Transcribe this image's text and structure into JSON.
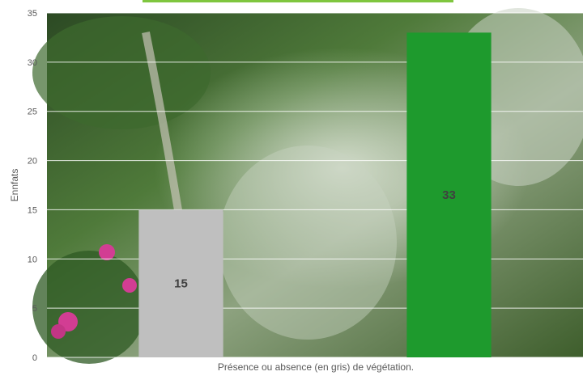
{
  "chart_data": {
    "type": "bar",
    "title": "",
    "xlabel": "Présence ou absence (en gris) de végétation.",
    "ylabel": "Ennfats",
    "ylim": [
      0,
      35
    ],
    "yticks": [
      0,
      5,
      10,
      15,
      20,
      25,
      30,
      35
    ],
    "categories": [
      "",
      ""
    ],
    "values": [
      15,
      33
    ],
    "data_labels": [
      "15",
      "33"
    ],
    "grid": true,
    "legend": "none",
    "colors": {
      "bars": [
        "#bfbfbf",
        "#1e9a2d"
      ],
      "gridline": "#ffffff",
      "legend_strip": "#7fc63f",
      "background_top": "#2f4a24",
      "background_mid": "#5f8a44",
      "background_light": "#b9c9b0",
      "flowers": "#d23d93"
    }
  }
}
